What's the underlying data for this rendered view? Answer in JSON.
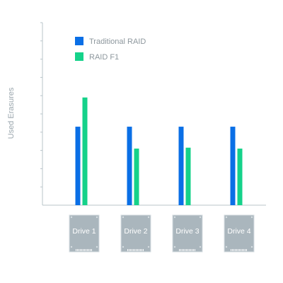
{
  "chart_data": {
    "type": "bar",
    "title": "",
    "xlabel": "",
    "ylabel": "Used Erasures",
    "categories": [
      "Drive 1",
      "Drive 2",
      "Drive 3",
      "Drive 4"
    ],
    "series": [
      {
        "name": "Traditional RAID",
        "color": "#0a6fe6",
        "values": [
          4.3,
          4.3,
          4.3,
          4.3
        ]
      },
      {
        "name": "RAID F1",
        "color": "#15d28a",
        "values": [
          5.9,
          3.1,
          3.15,
          3.1
        ]
      }
    ],
    "ylim": [
      0,
      10
    ],
    "y_ticks": [
      1,
      2,
      3,
      4,
      5,
      6,
      7,
      8,
      9,
      10
    ],
    "y_tick_labels_shown": false,
    "grid": false,
    "legend_position": "top-left",
    "category_icon": "ssd-drive-icon",
    "colors": {
      "axis": "#b9c4ca",
      "drive_fill": "#aab6bd",
      "drive_edge": "#d7dee2",
      "drive_text": "#ffffff",
      "ylabel": "#9aa6ad",
      "legend_text": "#8d979d"
    }
  }
}
